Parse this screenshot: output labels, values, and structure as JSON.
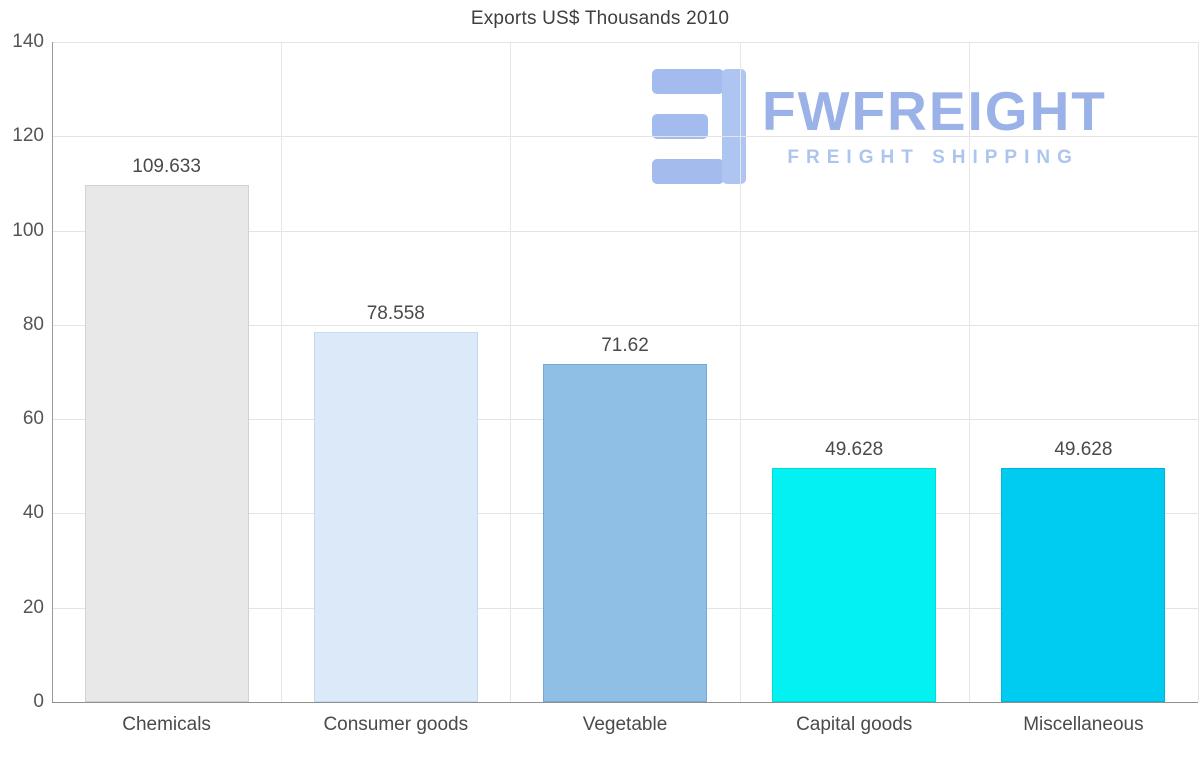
{
  "chart_data": {
    "type": "bar",
    "title": "Exports US$ Thousands 2010",
    "categories": [
      "Chemicals",
      "Consumer goods",
      "Vegetable",
      "Capital goods",
      "Miscellaneous"
    ],
    "values": [
      109.633,
      78.558,
      71.62,
      49.628,
      49.628
    ],
    "value_labels": [
      "109.633",
      "78.558",
      "71.62",
      "49.628",
      "49.628"
    ],
    "bar_colors": [
      "#e8e8e8",
      "#dce9f8",
      "#8fbfe4",
      "#04f1f1",
      "#00ccf2"
    ],
    "bar_border_colors": [
      "#d2d2d2",
      "#c2daf3",
      "#74a9d6",
      "#00dcdc",
      "#00b3da"
    ],
    "ylim": [
      0,
      140
    ],
    "yticks": [
      0,
      20,
      40,
      60,
      80,
      100,
      120,
      140
    ],
    "grid": true,
    "legend": "none",
    "xlabel": "",
    "ylabel": ""
  },
  "watermark": {
    "brand": "FWFREIGHT",
    "tagline": "FREIGHT SHIPPING",
    "brand_color": "#7f9de2",
    "icon": "fwfreight-logo-icon"
  }
}
